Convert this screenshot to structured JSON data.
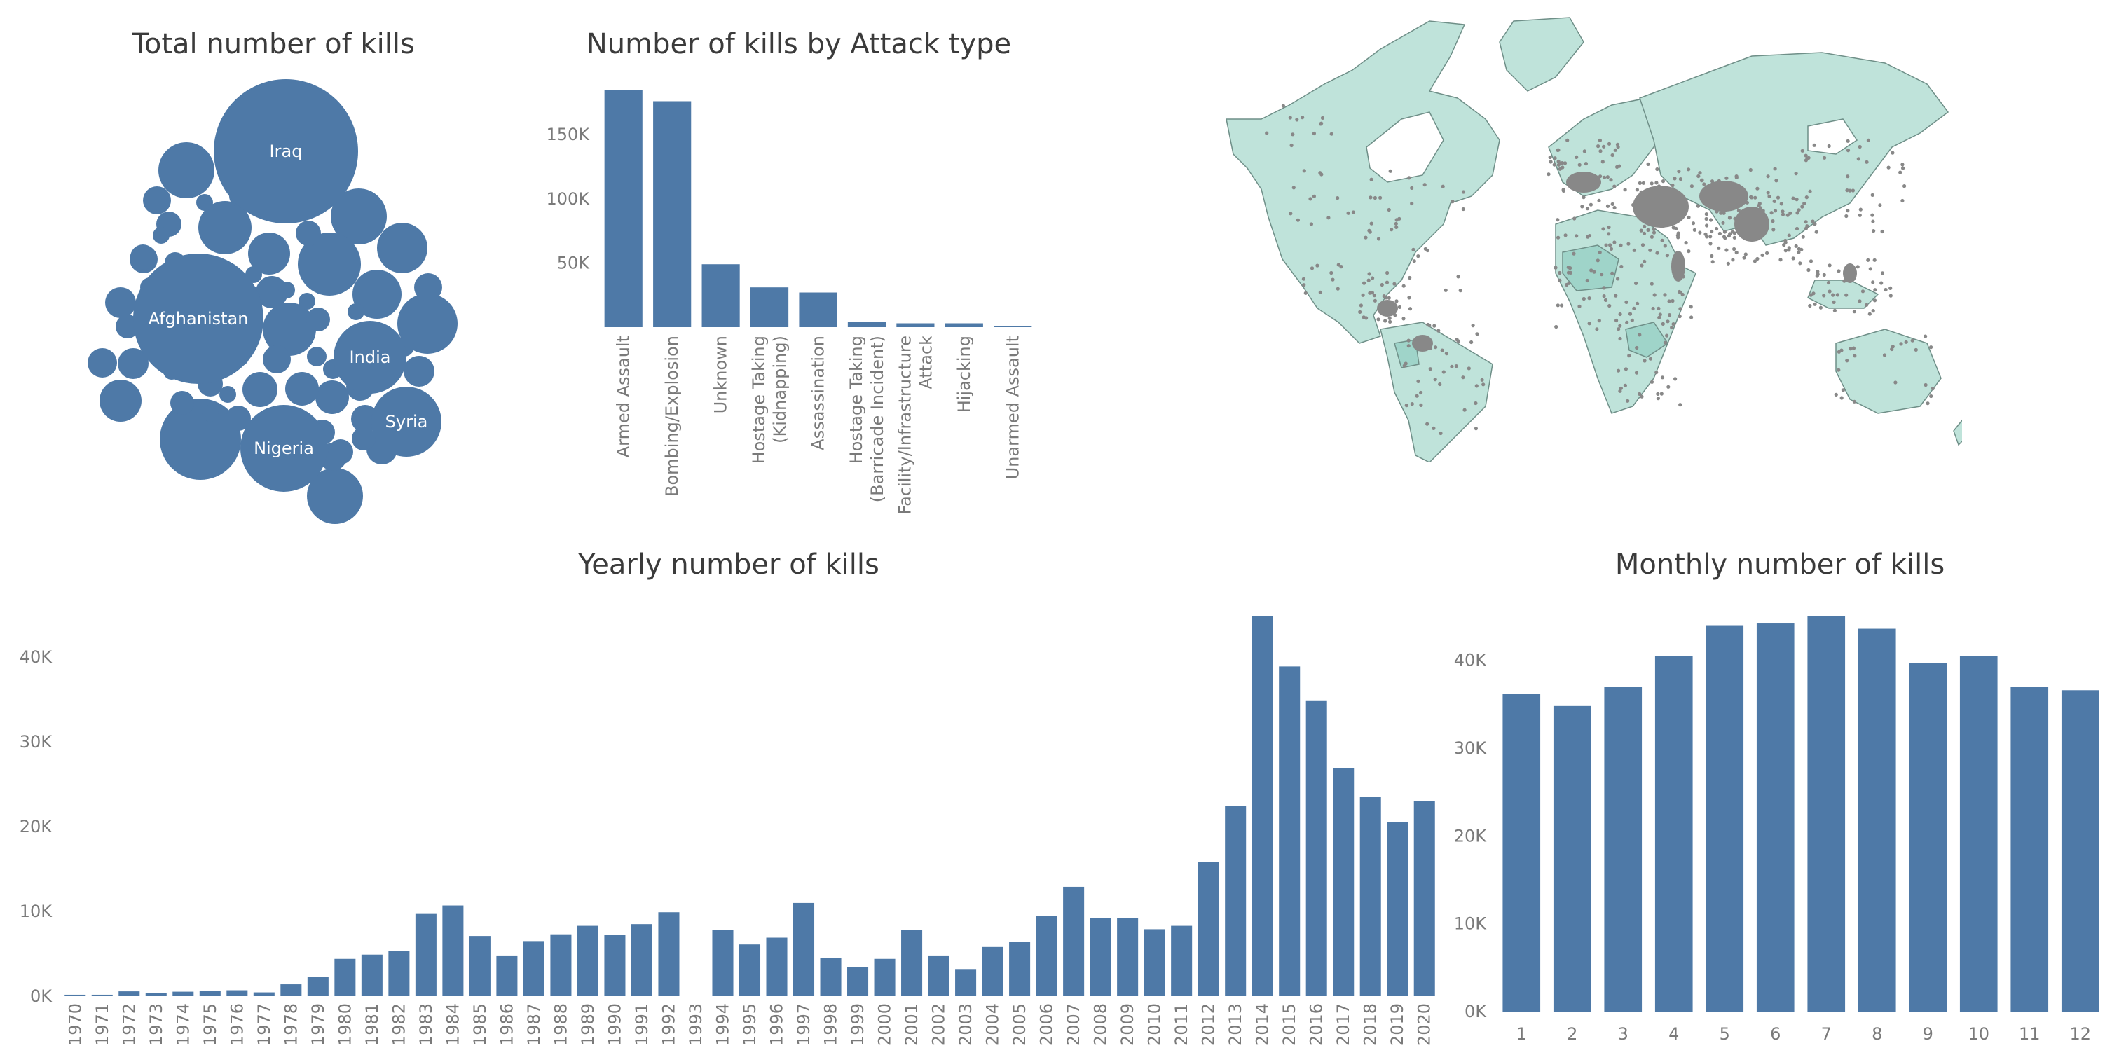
{
  "colors": {
    "bar": "#4e79a7",
    "text": "#3b3b3b",
    "tick": "#7a7a7a",
    "land": "#bfe3da",
    "land_dark": "#9fd4c9",
    "dots": "#888888"
  },
  "titles": {
    "bubbles": "Total number of kills",
    "attack": "Number of kills by Attack type",
    "yearly": "Yearly number of kills",
    "monthly": "Monthly number of kills"
  },
  "chart_data": [
    {
      "type": "bubble",
      "title": "Total number of kills",
      "labeled_bubbles": [
        {
          "label": "Iraq",
          "value": 78000
        },
        {
          "label": "Afghanistan",
          "value": 57000
        },
        {
          "label": "India",
          "value": 19000
        },
        {
          "label": "Nigeria",
          "value": 27000
        },
        {
          "label": "Syria",
          "value": 18000
        }
      ]
    },
    {
      "type": "bar",
      "title": "Number of kills by Attack type",
      "categories": [
        "Armed Assault",
        "Bombing/Explosion",
        "Unknown",
        "Hostage Taking (Kidnapping)",
        "Assassination",
        "Hostage Taking (Barricade Incident)",
        "Facility/Infrastructure Attack",
        "Hijacking",
        "Unarmed Assault"
      ],
      "category_lines": [
        [
          "Armed Assault"
        ],
        [
          "Bombing/Explosion"
        ],
        [
          "Unknown"
        ],
        [
          "Hostage Taking",
          "(Kidnapping)"
        ],
        [
          "Assassination"
        ],
        [
          "Hostage Taking",
          "(Barricade Incident)"
        ],
        [
          "Facility/Infrastructure",
          "Attack"
        ],
        [
          "Hijacking"
        ],
        [
          "Unarmed Assault"
        ]
      ],
      "values": [
        185000,
        176000,
        49000,
        31000,
        27000,
        4000,
        3000,
        3000,
        900
      ],
      "ylim": [
        0,
        185000
      ],
      "yticks": [
        {
          "v": 50000,
          "label": "50K"
        },
        {
          "v": 100000,
          "label": "100K"
        },
        {
          "v": 150000,
          "label": "150K"
        }
      ]
    },
    {
      "type": "bar",
      "title": "Yearly number of kills",
      "categories": [
        "1970",
        "1971",
        "1972",
        "1973",
        "1974",
        "1975",
        "1976",
        "1977",
        "1978",
        "1979",
        "1980",
        "1981",
        "1982",
        "1983",
        "1984",
        "1985",
        "1986",
        "1987",
        "1988",
        "1989",
        "1990",
        "1991",
        "1992",
        "1993",
        "1994",
        "1995",
        "1996",
        "1997",
        "1998",
        "1999",
        "2000",
        "2001",
        "2002",
        "2003",
        "2004",
        "2005",
        "2006",
        "2007",
        "2008",
        "2009",
        "2010",
        "2011",
        "2012",
        "2013",
        "2014",
        "2015",
        "2016",
        "2017",
        "2018",
        "2019",
        "2020"
      ],
      "values": [
        170,
        170,
        570,
        370,
        530,
        620,
        700,
        450,
        1400,
        2300,
        4400,
        4900,
        5300,
        9700,
        10700,
        7100,
        4800,
        6500,
        7300,
        8300,
        7200,
        8500,
        9900,
        0,
        7800,
        6100,
        6900,
        11000,
        4500,
        3400,
        4400,
        7800,
        4800,
        3200,
        5800,
        6400,
        9500,
        12900,
        9200,
        9200,
        7900,
        8300,
        15800,
        22400,
        44800,
        38900,
        34900,
        26900,
        23500,
        20500,
        23000
      ],
      "ylim": [
        0,
        44800
      ],
      "yticks": [
        {
          "v": 0,
          "label": "0K"
        },
        {
          "v": 10000,
          "label": "10K"
        },
        {
          "v": 20000,
          "label": "20K"
        },
        {
          "v": 30000,
          "label": "30K"
        },
        {
          "v": 40000,
          "label": "40K"
        }
      ]
    },
    {
      "type": "bar",
      "title": "Monthly number of kills",
      "categories": [
        "1",
        "2",
        "3",
        "4",
        "5",
        "6",
        "7",
        "8",
        "9",
        "10",
        "11",
        "12"
      ],
      "values": [
        36200,
        34800,
        37000,
        40500,
        44000,
        44200,
        45000,
        43600,
        39700,
        40500,
        37000,
        36600
      ],
      "ylim": [
        0,
        45000
      ],
      "yticks": [
        {
          "v": 0,
          "label": "0K"
        },
        {
          "v": 10000,
          "label": "10K"
        },
        {
          "v": 20000,
          "label": "20K"
        },
        {
          "v": 30000,
          "label": "30K"
        },
        {
          "v": 40000,
          "label": "40K"
        }
      ]
    }
  ]
}
